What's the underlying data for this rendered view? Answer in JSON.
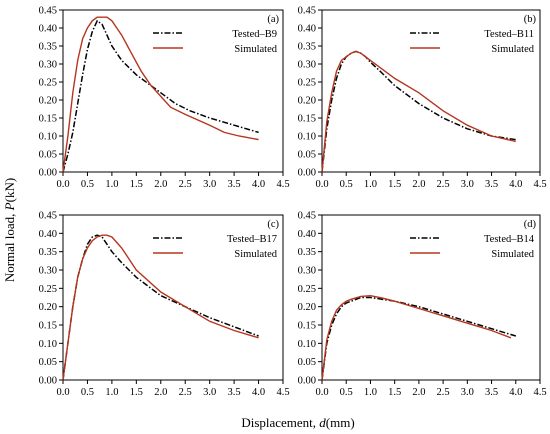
{
  "figure": {
    "ylabel_text": "Normal load, ",
    "ylabel_var": "P",
    "ylabel_unit": "(kN)",
    "xlabel_text": "Displacement, ",
    "xlabel_var": "d",
    "xlabel_unit": "(mm)"
  },
  "colors": {
    "tested": "#000000",
    "simulated": "#b5361f",
    "axis": "#000000"
  },
  "chart_data": [
    {
      "type": "line",
      "panel": "(a)",
      "xlim": [
        0.0,
        4.5
      ],
      "ylim": [
        0.0,
        0.45
      ],
      "xticks": [
        "0.0",
        "0.5",
        "1.0",
        "1.5",
        "2.0",
        "2.5",
        "3.0",
        "3.5",
        "4.0",
        "4.5"
      ],
      "yticks": [
        "0.00",
        "0.05",
        "0.10",
        "0.15",
        "0.20",
        "0.25",
        "0.30",
        "0.35",
        "0.40",
        "0.45"
      ],
      "legend_position": "top-right",
      "series": [
        {
          "name": "Tested–B9",
          "style": "dashdot",
          "x": [
            0,
            0.1,
            0.2,
            0.3,
            0.4,
            0.5,
            0.6,
            0.7,
            0.8,
            0.9,
            1.0,
            1.2,
            1.5,
            1.8,
            2.0,
            2.3,
            2.6,
            3.0,
            3.5,
            4.0
          ],
          "y": [
            0,
            0.05,
            0.11,
            0.19,
            0.27,
            0.34,
            0.39,
            0.42,
            0.41,
            0.38,
            0.35,
            0.31,
            0.27,
            0.24,
            0.22,
            0.19,
            0.17,
            0.15,
            0.13,
            0.11
          ]
        },
        {
          "name": "Simulated",
          "style": "solid",
          "x": [
            0,
            0.1,
            0.2,
            0.3,
            0.4,
            0.5,
            0.6,
            0.7,
            0.8,
            0.9,
            1.0,
            1.1,
            1.2,
            1.4,
            1.6,
            1.8,
            2.0,
            2.2,
            2.5,
            3.0,
            3.3,
            3.6,
            4.0
          ],
          "y": [
            0,
            0.1,
            0.22,
            0.31,
            0.37,
            0.4,
            0.42,
            0.43,
            0.43,
            0.43,
            0.42,
            0.4,
            0.38,
            0.33,
            0.28,
            0.24,
            0.21,
            0.18,
            0.16,
            0.13,
            0.11,
            0.1,
            0.09
          ]
        }
      ]
    },
    {
      "type": "line",
      "panel": "(b)",
      "xlim": [
        0.0,
        4.5
      ],
      "ylim": [
        0.0,
        0.45
      ],
      "xticks": [
        "0.0",
        "0.5",
        "1.0",
        "1.5",
        "2.0",
        "2.5",
        "3.0",
        "3.5",
        "4.0",
        "4.5"
      ],
      "yticks": [
        "0.00",
        "0.05",
        "0.10",
        "0.15",
        "0.20",
        "0.25",
        "0.30",
        "0.35",
        "0.40",
        "0.45"
      ],
      "legend_position": "top-right",
      "series": [
        {
          "name": "Tested–B11",
          "style": "dashdot",
          "x": [
            0,
            0.1,
            0.2,
            0.3,
            0.4,
            0.5,
            0.6,
            0.7,
            0.8,
            0.9,
            1.0,
            1.2,
            1.5,
            2.0,
            2.5,
            3.0,
            3.5,
            4.0
          ],
          "y": [
            0,
            0.12,
            0.2,
            0.26,
            0.3,
            0.32,
            0.33,
            0.335,
            0.33,
            0.32,
            0.305,
            0.28,
            0.24,
            0.19,
            0.15,
            0.12,
            0.1,
            0.09
          ]
        },
        {
          "name": "Simulated",
          "style": "solid",
          "x": [
            0,
            0.1,
            0.2,
            0.3,
            0.4,
            0.5,
            0.6,
            0.7,
            0.8,
            0.9,
            1.0,
            1.2,
            1.5,
            2.0,
            2.5,
            3.0,
            3.5,
            4.0
          ],
          "y": [
            0,
            0.14,
            0.22,
            0.28,
            0.31,
            0.32,
            0.33,
            0.335,
            0.33,
            0.32,
            0.31,
            0.29,
            0.26,
            0.22,
            0.17,
            0.13,
            0.1,
            0.085
          ]
        }
      ]
    },
    {
      "type": "line",
      "panel": "(c)",
      "xlim": [
        0.0,
        4.5
      ],
      "ylim": [
        0.0,
        0.45
      ],
      "xticks": [
        "0.0",
        "0.5",
        "1.0",
        "1.5",
        "2.0",
        "2.5",
        "3.0",
        "3.5",
        "4.0",
        "4.5"
      ],
      "yticks": [
        "0.00",
        "0.05",
        "0.10",
        "0.15",
        "0.20",
        "0.25",
        "0.30",
        "0.35",
        "0.40",
        "0.45"
      ],
      "legend_position": "top-right",
      "series": [
        {
          "name": "Tested–B17",
          "style": "dashdot",
          "x": [
            0,
            0.1,
            0.2,
            0.3,
            0.4,
            0.5,
            0.6,
            0.7,
            0.8,
            0.9,
            1.0,
            1.2,
            1.5,
            2.0,
            2.5,
            3.0,
            3.5,
            4.0
          ],
          "y": [
            0,
            0.1,
            0.2,
            0.28,
            0.33,
            0.37,
            0.39,
            0.395,
            0.39,
            0.37,
            0.35,
            0.32,
            0.28,
            0.23,
            0.2,
            0.17,
            0.145,
            0.12
          ]
        },
        {
          "name": "Simulated",
          "style": "solid",
          "x": [
            0,
            0.1,
            0.2,
            0.3,
            0.4,
            0.5,
            0.6,
            0.7,
            0.8,
            0.9,
            1.0,
            1.1,
            1.2,
            1.5,
            2.0,
            2.5,
            3.0,
            3.5,
            4.0
          ],
          "y": [
            0,
            0.1,
            0.2,
            0.28,
            0.33,
            0.36,
            0.38,
            0.39,
            0.395,
            0.395,
            0.39,
            0.375,
            0.36,
            0.3,
            0.24,
            0.2,
            0.16,
            0.135,
            0.115
          ]
        }
      ]
    },
    {
      "type": "line",
      "panel": "(d)",
      "xlim": [
        0.0,
        4.5
      ],
      "ylim": [
        0.0,
        0.45
      ],
      "xticks": [
        "0.0",
        "0.5",
        "1.0",
        "1.5",
        "2.0",
        "2.5",
        "3.0",
        "3.5",
        "4.0",
        "4.5"
      ],
      "yticks": [
        "0.00",
        "0.05",
        "0.10",
        "0.15",
        "0.20",
        "0.25",
        "0.30",
        "0.35",
        "0.40",
        "0.45"
      ],
      "legend_position": "top-right",
      "series": [
        {
          "name": "Tested–B14",
          "style": "dashdot",
          "x": [
            0,
            0.1,
            0.2,
            0.3,
            0.4,
            0.5,
            0.6,
            0.8,
            1.0,
            1.5,
            2.0,
            2.5,
            3.0,
            3.5,
            4.0
          ],
          "y": [
            0,
            0.1,
            0.15,
            0.18,
            0.2,
            0.21,
            0.215,
            0.225,
            0.225,
            0.215,
            0.2,
            0.18,
            0.16,
            0.14,
            0.12
          ]
        },
        {
          "name": "Simulated",
          "style": "solid",
          "x": [
            0,
            0.1,
            0.2,
            0.3,
            0.4,
            0.5,
            0.6,
            0.8,
            1.0,
            1.2,
            1.5,
            2.0,
            2.5,
            3.0,
            3.5,
            3.9
          ],
          "y": [
            0,
            0.11,
            0.16,
            0.19,
            0.205,
            0.215,
            0.22,
            0.228,
            0.23,
            0.225,
            0.215,
            0.195,
            0.175,
            0.155,
            0.135,
            0.115
          ]
        }
      ]
    }
  ]
}
